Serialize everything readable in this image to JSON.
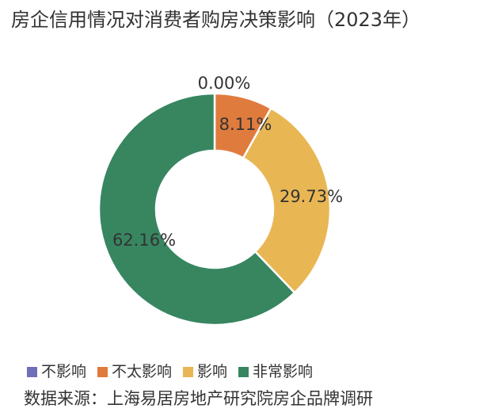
{
  "chart_data": {
    "type": "pie",
    "title": "房企信用情况对消费者购房决策影响（2023年）",
    "categories": [
      "不影响",
      "不太影响",
      "影响",
      "非常影响"
    ],
    "values": [
      0.0,
      8.11,
      29.73,
      62.16
    ],
    "value_labels": [
      "0.00%",
      "8.11%",
      "29.73%",
      "62.16%"
    ],
    "colors": [
      "#6f6fb8",
      "#e07b3e",
      "#e9b654",
      "#378660"
    ],
    "style": "donut",
    "legend_position": "bottom-left"
  },
  "source": "数据来源：上海易居房地产研究院房企品牌调研"
}
